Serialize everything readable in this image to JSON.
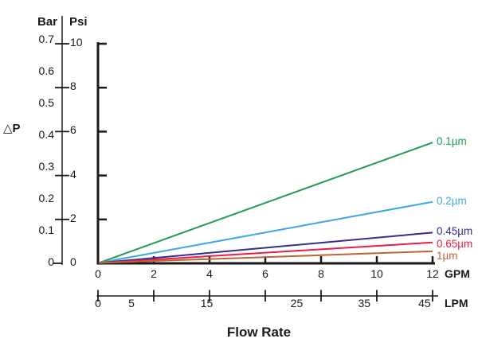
{
  "chart_data": {
    "type": "line",
    "title": "Flow Rate",
    "xlabel": "Flow Rate",
    "ylabel": "△P",
    "grid": false,
    "legend_position": "right-of-line-ends",
    "x_axes": [
      {
        "unit": "GPM",
        "ticks": [
          0,
          2,
          4,
          6,
          8,
          10,
          12
        ],
        "range": [
          0,
          12
        ]
      },
      {
        "unit": "LPM",
        "tick_labels": [
          0,
          5,
          15,
          25,
          35,
          45
        ],
        "range": [
          0,
          45.4
        ]
      }
    ],
    "y_axes": [
      {
        "unit": "Bar",
        "ticks": [
          0,
          0.1,
          0.2,
          0.3,
          0.4,
          0.5,
          0.6,
          0.7
        ],
        "range": [
          0,
          0.72
        ]
      },
      {
        "unit": "Psi",
        "ticks": [
          0,
          2,
          4,
          6,
          8,
          10
        ],
        "range": [
          0,
          10
        ]
      }
    ],
    "series": [
      {
        "name": "0.1µm",
        "color": "#1f9d52",
        "x_gpm": [
          0,
          12
        ],
        "y_psi": [
          0,
          5.5
        ]
      },
      {
        "name": "0.2µm",
        "color": "#3aa9e1",
        "x_gpm": [
          0,
          12
        ],
        "y_psi": [
          0,
          2.8
        ]
      },
      {
        "name": "0.45µm",
        "color": "#312d91",
        "x_gpm": [
          0,
          12
        ],
        "y_psi": [
          0,
          1.4
        ]
      },
      {
        "name": "0.65µm",
        "color": "#ee1a4c",
        "x_gpm": [
          0,
          12
        ],
        "y_psi": [
          0,
          0.95
        ]
      },
      {
        "name": "1µm",
        "color": "#bb6434",
        "x_gpm": [
          0,
          12
        ],
        "y_psi": [
          0,
          0.55
        ]
      }
    ],
    "axis_color": "#1a1a1a"
  }
}
